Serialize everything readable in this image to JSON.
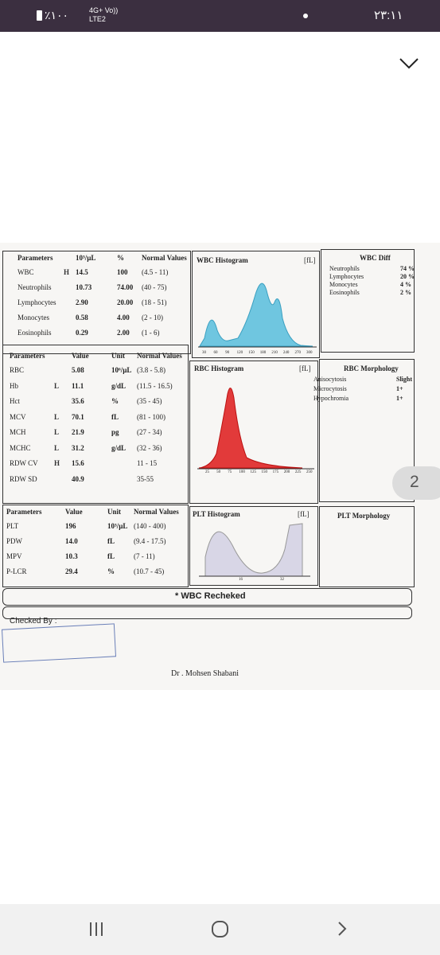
{
  "status_bar": {
    "battery": "٪۱۰۰",
    "network": "4G+ Vo)) LTE2",
    "time": "۲۳:۱۱"
  },
  "page_indicator": "2",
  "wbc": {
    "headers": [
      "Parameters",
      "10³/µL",
      "%",
      "Normal Values"
    ],
    "rows": [
      {
        "name": "WBC",
        "flag": "H",
        "count": "14.5",
        "percent": "100",
        "normal": "(4.5 - 11)"
      },
      {
        "name": "Neutrophils",
        "count": "10.73",
        "percent": "74.00",
        "normal": "(40 - 75)"
      },
      {
        "name": "Lymphocytes",
        "count": "2.90",
        "percent": "20.00",
        "normal": "(18 - 51)"
      },
      {
        "name": "Monocytes",
        "count": "0.58",
        "percent": "4.00",
        "normal": "(2 - 10)"
      },
      {
        "name": "Eosinophils",
        "count": "0.29",
        "percent": "2.00",
        "normal": "(1 - 6)"
      }
    ]
  },
  "wbc_histogram": {
    "title": "WBC Histogram",
    "unit": "[fL]",
    "axis": [
      "30",
      "60",
      "90",
      "120",
      "150",
      "180",
      "210",
      "240",
      "270",
      "300"
    ]
  },
  "wbc_diff": {
    "title": "WBC Diff",
    "rows": [
      [
        "Neutrophils",
        "74 %"
      ],
      [
        "Lymphocytes",
        "20 %"
      ],
      [
        "Monocytes",
        "4 %"
      ],
      [
        "Eosinophils",
        "2 %"
      ]
    ]
  },
  "rbc": {
    "headers": [
      "Parameters",
      "Value",
      "Unit",
      "Normal Values"
    ],
    "rows": [
      {
        "name": "RBC",
        "value": "5.08",
        "unit": "10⁶/µL",
        "normal": "(3.8 - 5.8)"
      },
      {
        "name": "Hb",
        "flag": "L",
        "value": "11.1",
        "unit": "g/dL",
        "normal": "(11.5 - 16.5)"
      },
      {
        "name": "Hct",
        "value": "35.6",
        "unit": "%",
        "normal": "(35 - 45)"
      },
      {
        "name": "MCV",
        "flag": "L",
        "value": "70.1",
        "unit": "fL",
        "normal": "(81 - 100)"
      },
      {
        "name": "MCH",
        "flag": "L",
        "value": "21.9",
        "unit": "pg",
        "normal": "(27 - 34)"
      },
      {
        "name": "MCHC",
        "flag": "L",
        "value": "31.2",
        "unit": "g/dL",
        "normal": "(32 - 36)"
      },
      {
        "name": "RDW CV",
        "flag": "H",
        "value": "15.6",
        "normal": "11 - 15"
      },
      {
        "name": "RDW SD",
        "value": "40.9",
        "normal": "35-55"
      }
    ]
  },
  "rbc_histogram": {
    "title": "RBC Histogram",
    "unit": "[fL]",
    "axis": [
      "25",
      "50",
      "75",
      "100",
      "125",
      "150",
      "175",
      "200",
      "225",
      "250"
    ]
  },
  "rbc_morphology": {
    "title": "RBC Morphology",
    "rows": [
      [
        "Anisocytosis",
        "Slight"
      ],
      [
        "Microcytosis",
        "1+"
      ],
      [
        "Hypochromia",
        "1+"
      ]
    ]
  },
  "plt": {
    "headers": [
      "Parameters",
      "Value",
      "Unit",
      "Normal Values"
    ],
    "rows": [
      {
        "name": "PLT",
        "value": "196",
        "unit": "10³/µL",
        "normal": "(140 - 400)"
      },
      {
        "name": "PDW",
        "value": "14.0",
        "unit": "fL",
        "normal": "(9.4 - 17.5)"
      },
      {
        "name": "MPV",
        "value": "10.3",
        "unit": "fL",
        "normal": "(7 - 11)"
      },
      {
        "name": "P-LCR",
        "value": "29.4",
        "unit": "%",
        "normal": "(10.7 - 45)"
      }
    ]
  },
  "plt_histogram": {
    "title": "PLT Histogram",
    "unit": "[fL]",
    "axis": [
      "16",
      "32"
    ]
  },
  "plt_morphology": {
    "title": "PLT Morphology"
  },
  "note": "* WBC Recheked",
  "checked_by": "Checked By :",
  "doctor": "Dr . Mohsen Shabani"
}
